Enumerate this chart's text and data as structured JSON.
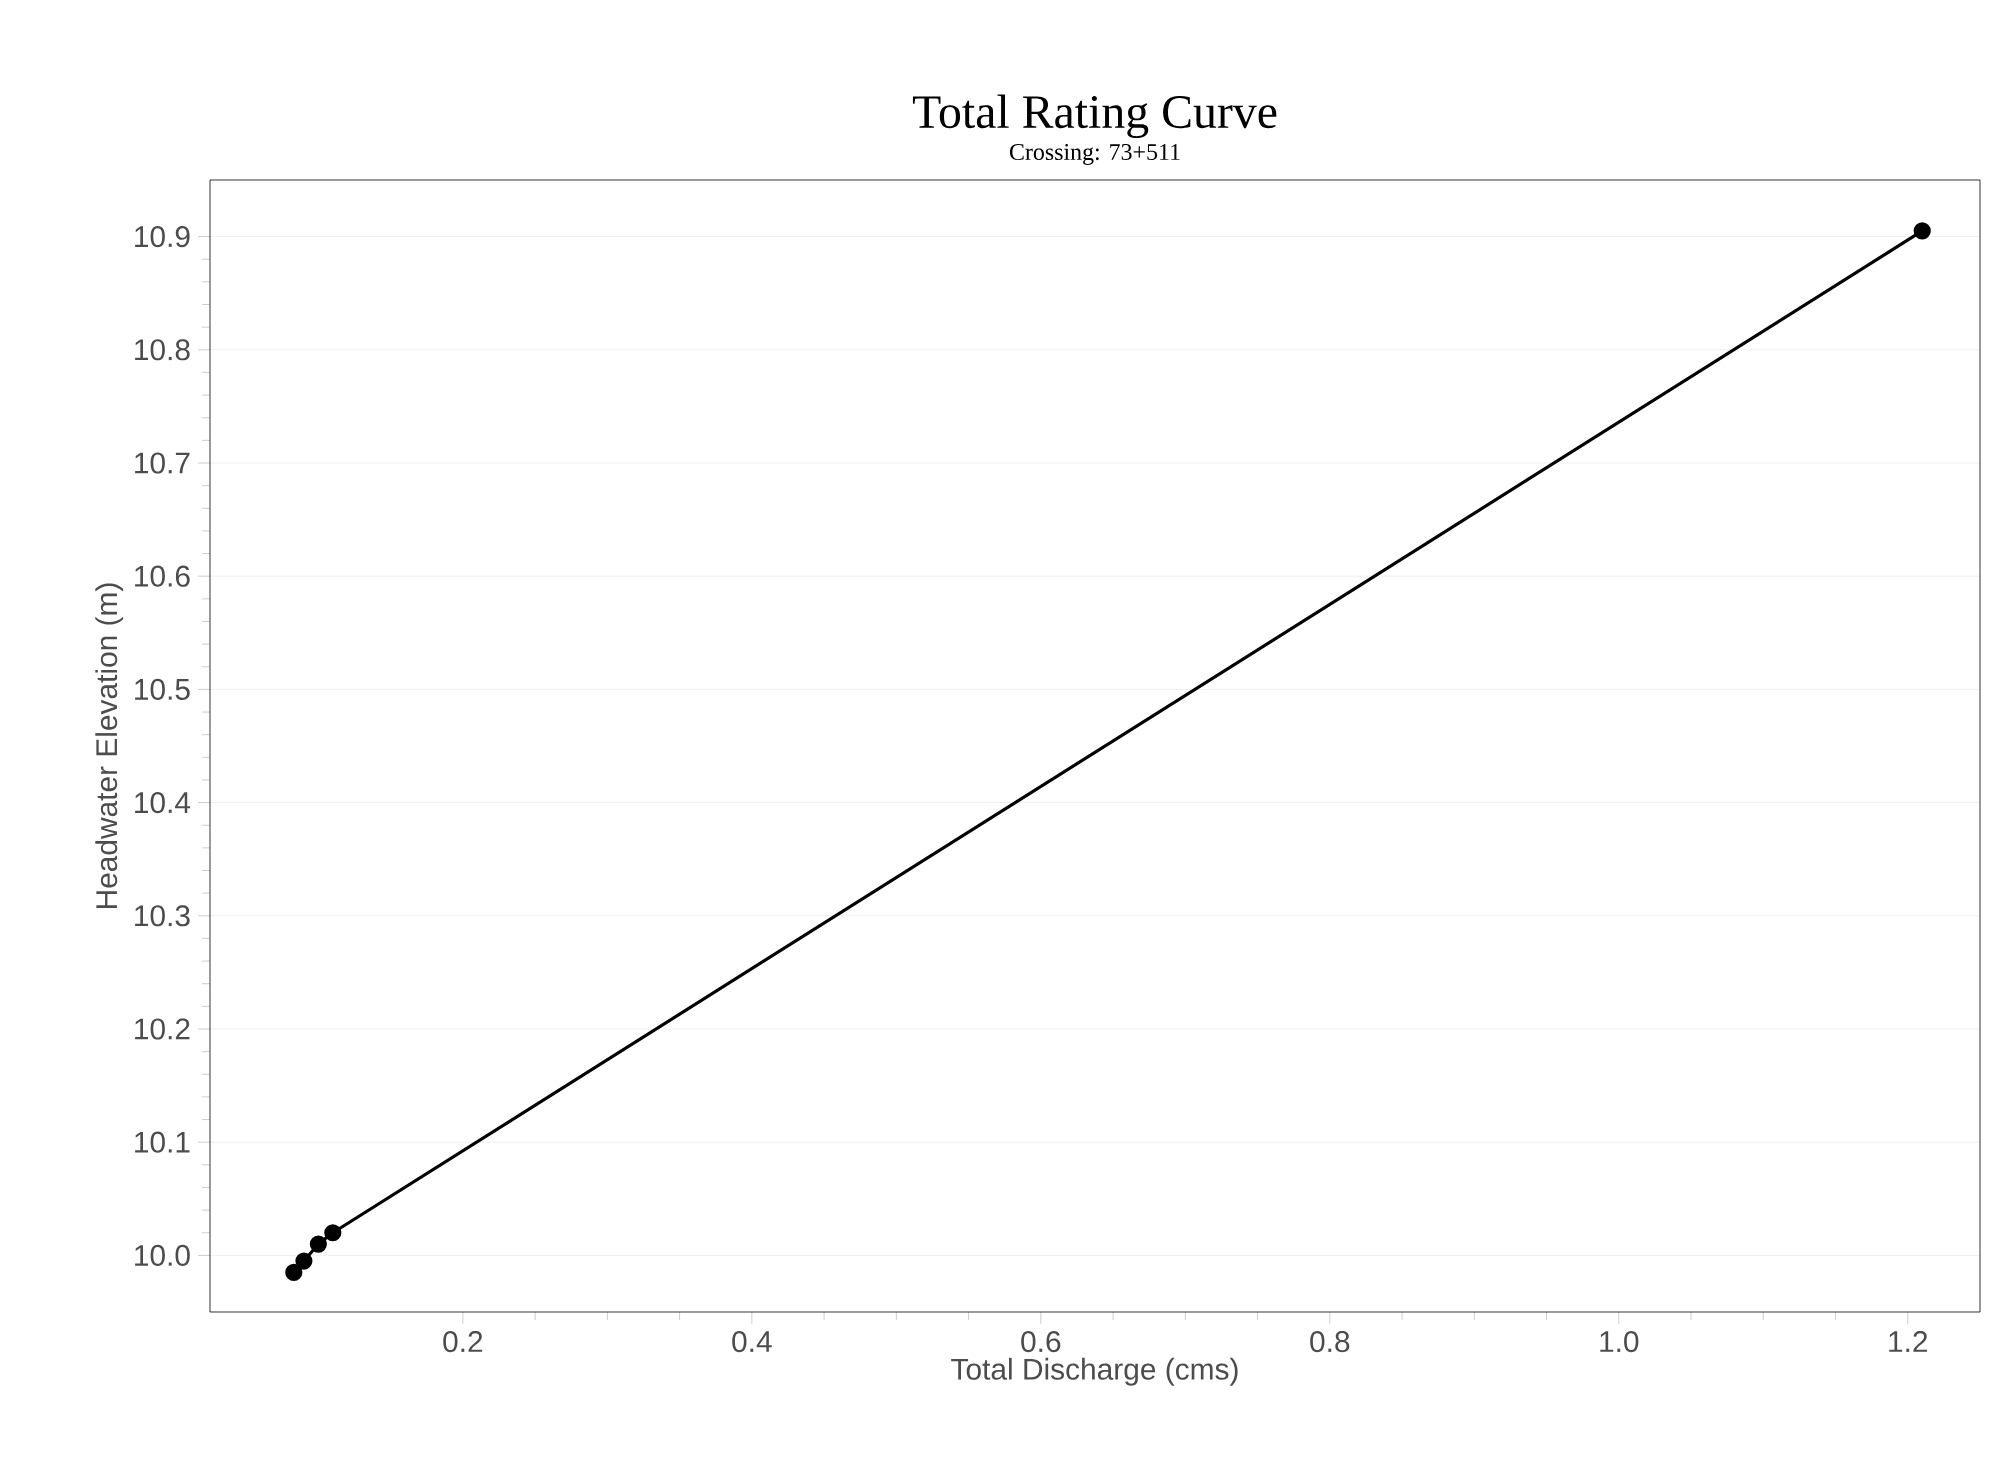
{
  "chart_data": {
    "type": "line",
    "title": "Total Rating Curve",
    "subtitle": "Crossing: 73+511",
    "xlabel": "Total Discharge (cms)",
    "ylabel": "Headwater Elevation (m)",
    "x": [
      0.083,
      0.09,
      0.1,
      0.11,
      1.21
    ],
    "series": [
      {
        "color": "#000000",
        "values": [
          9.985,
          9.995,
          10.01,
          10.02,
          10.905
        ]
      }
    ],
    "xlim": [
      0.025,
      1.25
    ],
    "ylim": [
      9.95,
      10.95
    ],
    "xticks": [
      {
        "value": 0.2,
        "label": "0.2"
      },
      {
        "value": 0.4,
        "label": "0.4"
      },
      {
        "value": 0.6,
        "label": "0.6"
      },
      {
        "value": 0.8,
        "label": "0.8"
      },
      {
        "value": 1.0,
        "label": "1.0"
      },
      {
        "value": 1.2,
        "label": "1.2"
      }
    ],
    "yticks": [
      {
        "value": 10.0,
        "label": "10.0"
      },
      {
        "value": 10.1,
        "label": "10.1"
      },
      {
        "value": 10.2,
        "label": "10.2"
      },
      {
        "value": 10.3,
        "label": "10.3"
      },
      {
        "value": 10.4,
        "label": "10.4"
      },
      {
        "value": 10.5,
        "label": "10.5"
      },
      {
        "value": 10.6,
        "label": "10.6"
      },
      {
        "value": 10.7,
        "label": "10.7"
      },
      {
        "value": 10.8,
        "label": "10.8"
      },
      {
        "value": 10.9,
        "label": "10.9"
      }
    ],
    "grid": "y",
    "marker": "circle",
    "line_style": "solid"
  }
}
